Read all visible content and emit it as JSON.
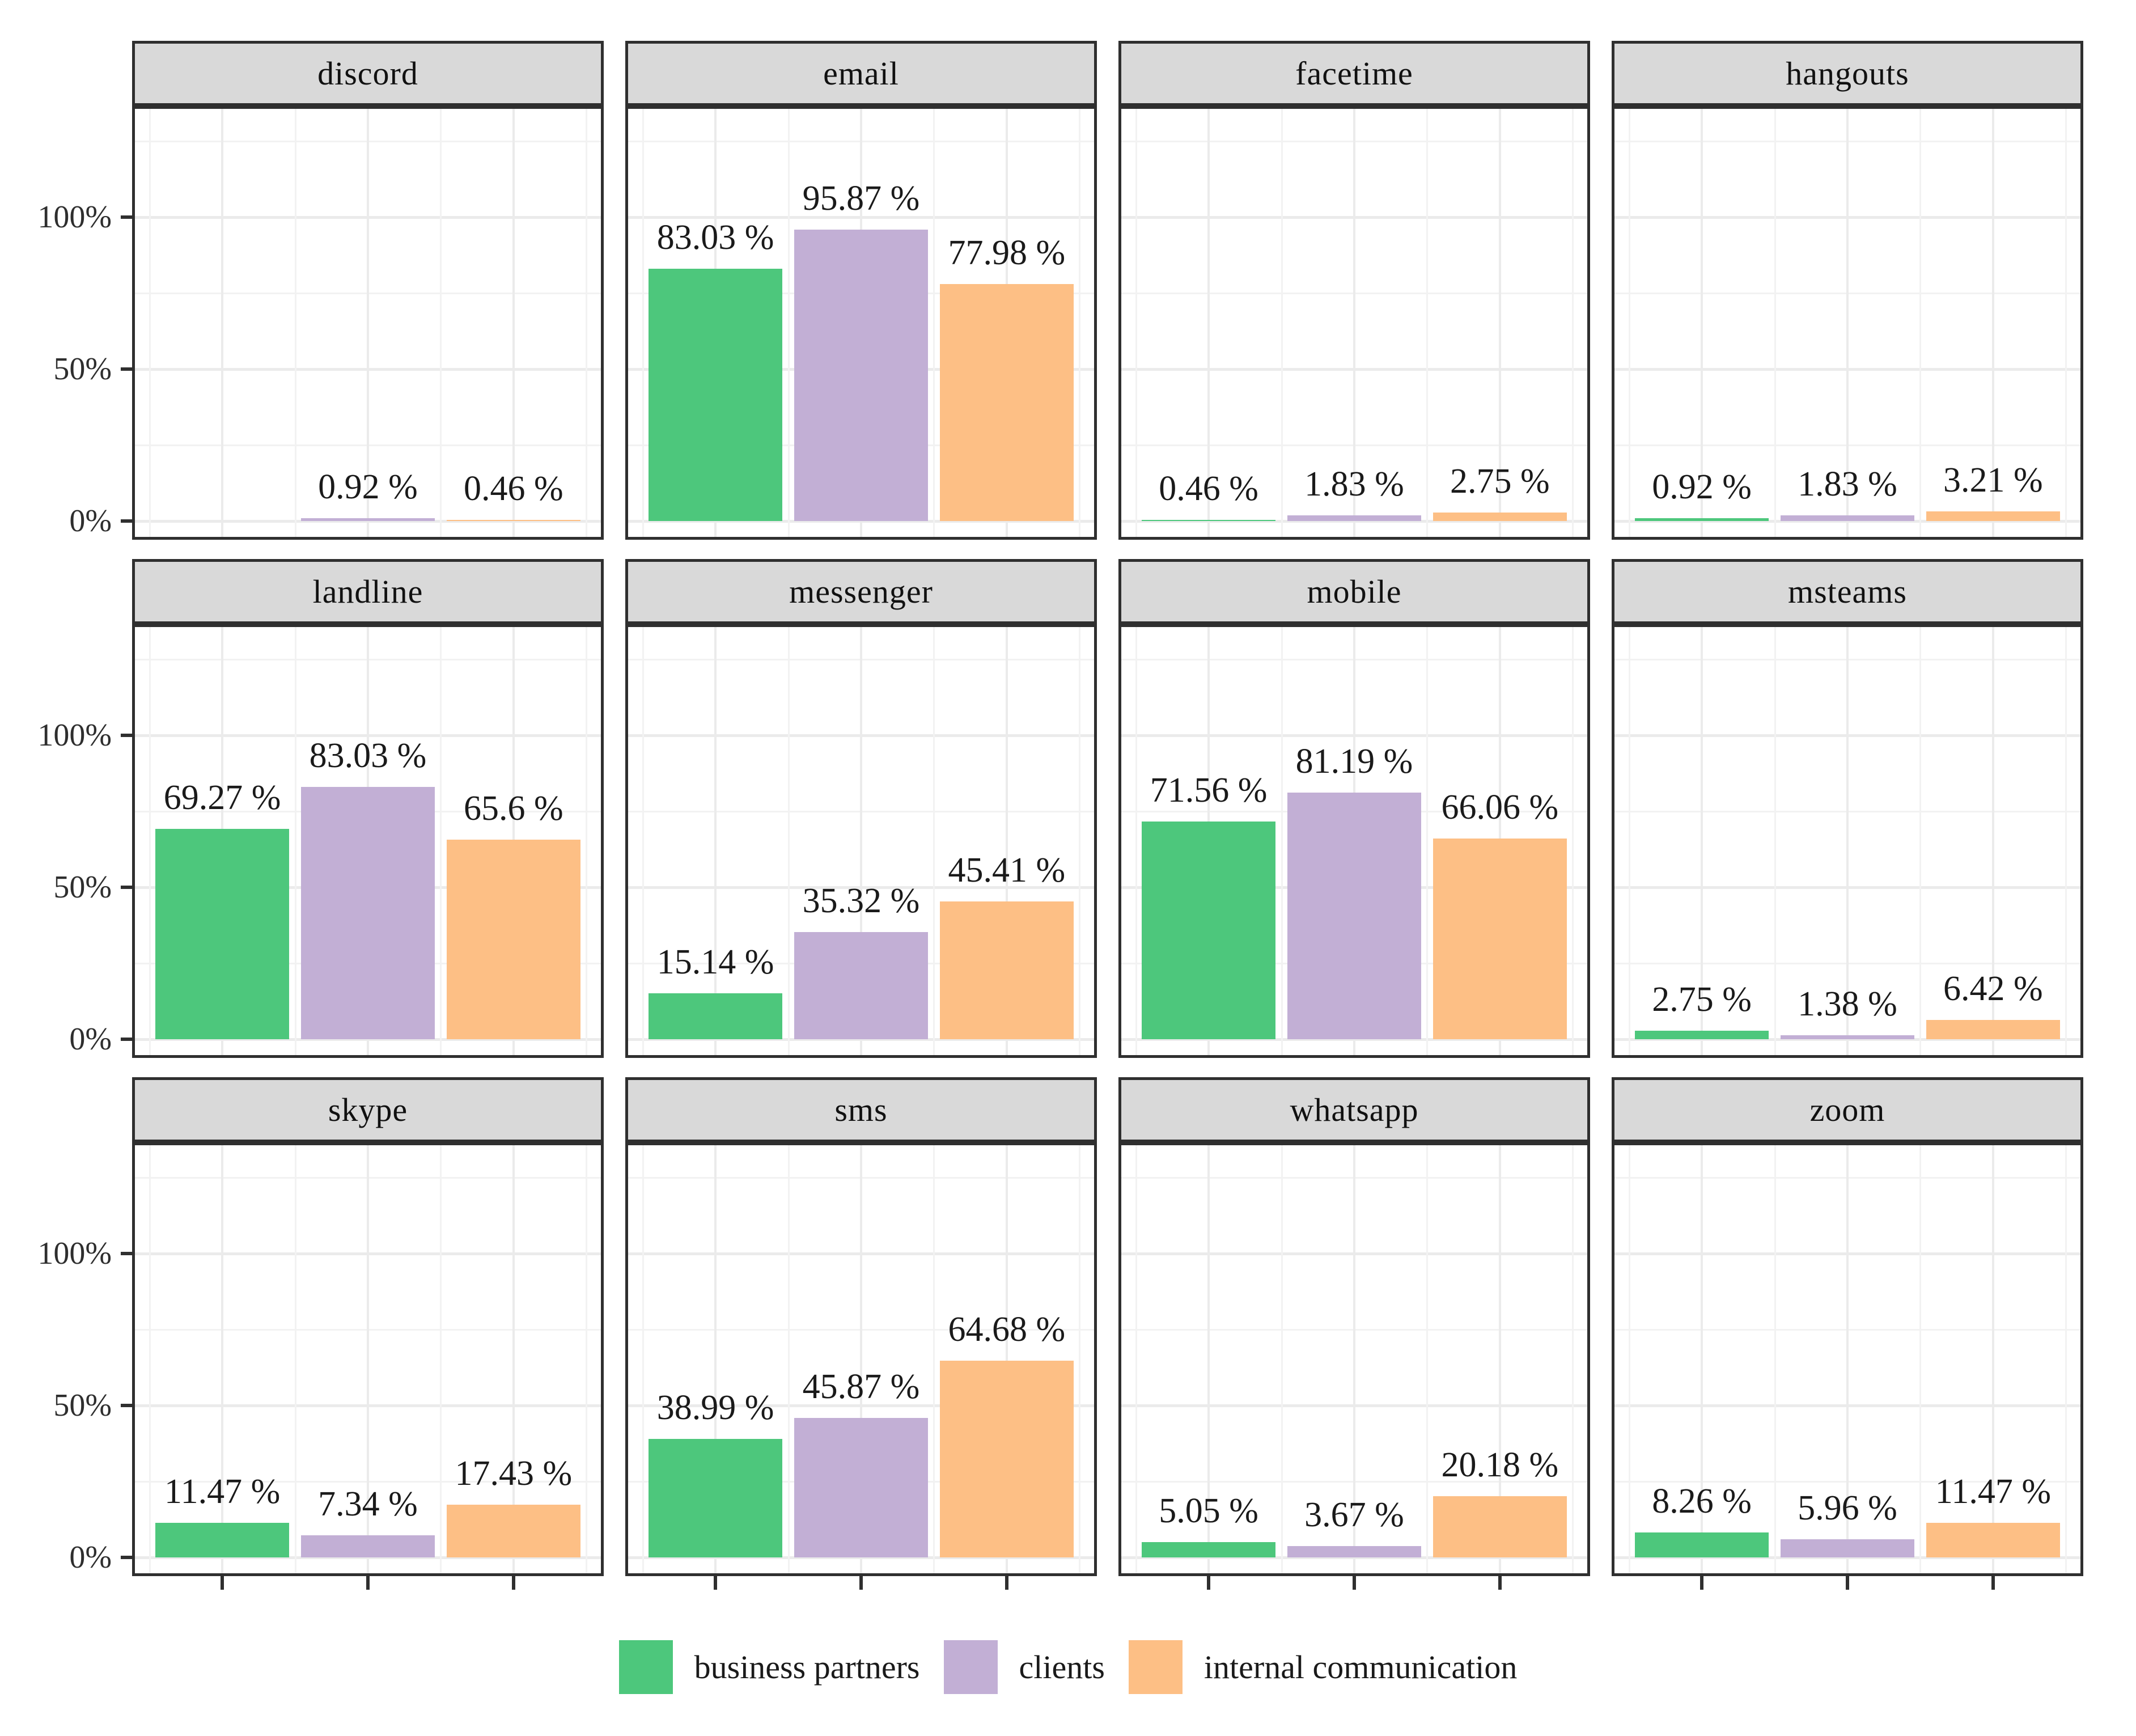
{
  "chart_data": {
    "type": "bar",
    "title": "",
    "xlabel": "",
    "ylabel": "",
    "grid": true,
    "legend_position": "bottom",
    "y_axis_tick_labels": [
      "0%",
      "50%",
      "100%"
    ],
    "y_major_gridlines_pct": [
      0,
      50,
      100
    ],
    "y_minor_gridlines_pct": [
      25,
      75,
      125
    ],
    "y_range_pct": [
      -6,
      137
    ],
    "series": [
      {
        "name": "business partners",
        "color": "#4DC77C"
      },
      {
        "name": "clients",
        "color": "#C2AFD5"
      },
      {
        "name": "internal communication",
        "color": "#FDBF85"
      }
    ],
    "facets": [
      {
        "title": "discord",
        "values": [
          null,
          0.92,
          0.46
        ],
        "labels": [
          null,
          "0.92 %",
          "0.46 %"
        ]
      },
      {
        "title": "email",
        "values": [
          83.03,
          95.87,
          77.98
        ],
        "labels": [
          "83.03 %",
          "95.87 %",
          "77.98 %"
        ]
      },
      {
        "title": "facetime",
        "values": [
          0.46,
          1.83,
          2.75
        ],
        "labels": [
          "0.46 %",
          "1.83 %",
          "2.75 %"
        ]
      },
      {
        "title": "hangouts",
        "values": [
          0.92,
          1.83,
          3.21
        ],
        "labels": [
          "0.92 %",
          "1.83 %",
          "3.21 %"
        ]
      },
      {
        "title": "landline",
        "values": [
          69.27,
          83.03,
          65.6
        ],
        "labels": [
          "69.27 %",
          "83.03 %",
          "65.6 %"
        ]
      },
      {
        "title": "messenger",
        "values": [
          15.14,
          35.32,
          45.41
        ],
        "labels": [
          "15.14 %",
          "35.32 %",
          "45.41 %"
        ]
      },
      {
        "title": "mobile",
        "values": [
          71.56,
          81.19,
          66.06
        ],
        "labels": [
          "71.56 %",
          "81.19 %",
          "66.06 %"
        ]
      },
      {
        "title": "msteams",
        "values": [
          2.75,
          1.38,
          6.42
        ],
        "labels": [
          "2.75 %",
          "1.38 %",
          "6.42 %"
        ]
      },
      {
        "title": "skype",
        "values": [
          11.47,
          7.34,
          17.43
        ],
        "labels": [
          "11.47 %",
          "7.34 %",
          "17.43 %"
        ]
      },
      {
        "title": "sms",
        "values": [
          38.99,
          45.87,
          64.68
        ],
        "labels": [
          "38.99 %",
          "45.87 %",
          "64.68 %"
        ]
      },
      {
        "title": "whatsapp",
        "values": [
          5.05,
          3.67,
          20.18
        ],
        "labels": [
          "5.05 %",
          "3.67 %",
          "20.18 %"
        ]
      },
      {
        "title": "zoom",
        "values": [
          8.26,
          5.96,
          11.47
        ],
        "labels": [
          "8.26 %",
          "5.96 %",
          "11.47 %"
        ]
      }
    ]
  },
  "palette": {
    "business_partners": "#4DC77C",
    "clients": "#C2AFD5",
    "internal_communication": "#FDBF85",
    "strip_background": "#D9D9D9",
    "panel_border": "#2F2F2F",
    "gridline_major": "#EBEBEB",
    "gridline_minor": "#F2F2F2",
    "axis_text": "#2E2E2E",
    "label_text": "#1A1A1A",
    "background": "#FFFFFF"
  }
}
